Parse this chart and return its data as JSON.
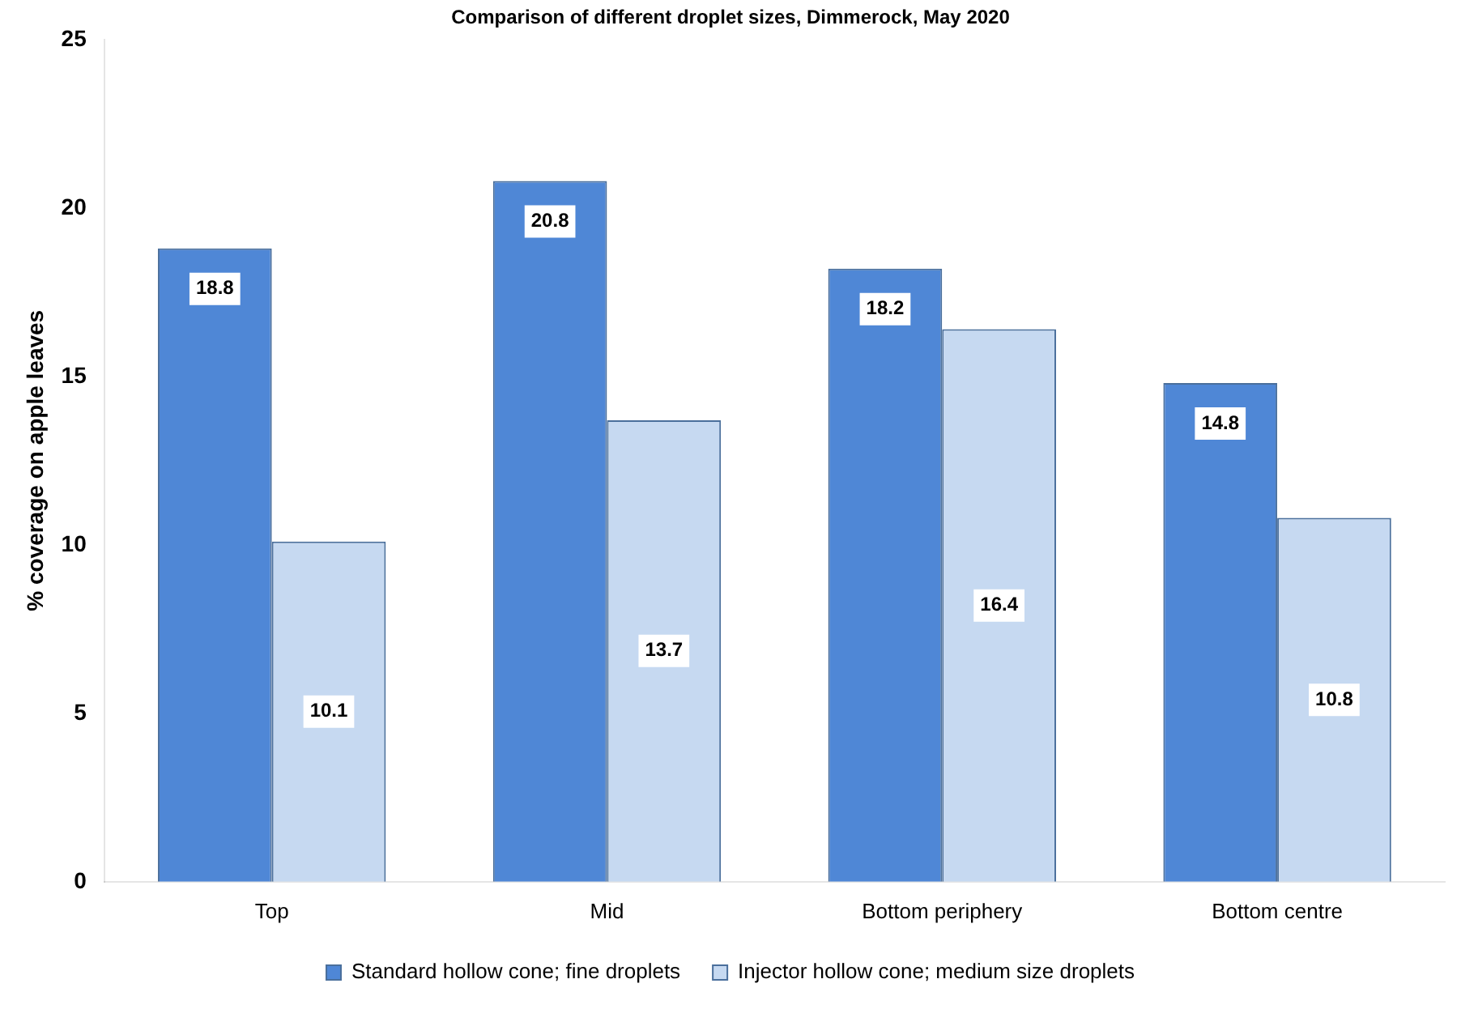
{
  "chart_data": {
    "type": "bar",
    "title": "Comparison of different droplet sizes, Dimmerock, May 2020",
    "ylabel": "% coverage on apple leaves",
    "categories": [
      "Top",
      "Mid",
      "Bottom periphery",
      "Bottom centre"
    ],
    "series": [
      {
        "name": "Standard hollow cone; fine droplets",
        "color": "#4f87d6",
        "values": [
          18.8,
          20.8,
          18.2,
          14.8
        ]
      },
      {
        "name": "Injector hollow cone; medium size droplets",
        "color": "#c6d9f1",
        "values": [
          10.1,
          13.7,
          16.4,
          10.8
        ]
      }
    ],
    "ylim": [
      0,
      25
    ],
    "yticks": [
      0,
      5,
      10,
      15,
      20,
      25
    ],
    "grid": false,
    "legend": "bottom",
    "data_labels": true
  }
}
